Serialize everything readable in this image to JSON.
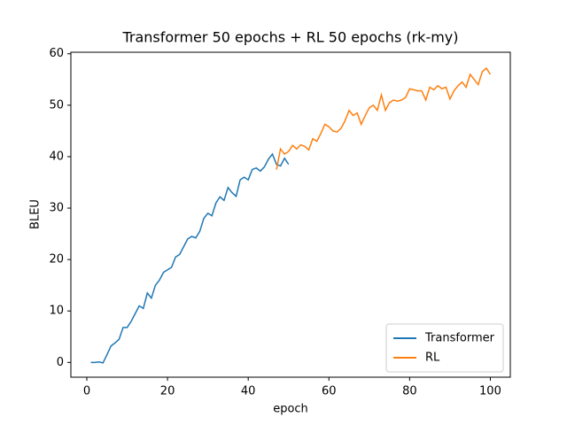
{
  "chart_data": {
    "type": "line",
    "title": "Transformer 50 epochs + RL 50 epochs (rk-my)",
    "x_label": "epoch",
    "y_label": "BLEU",
    "xlim": [
      -3.95,
      104.95
    ],
    "ylim": [
      -2.87,
      60.3
    ],
    "xticks": [
      0,
      20,
      40,
      60,
      80,
      100
    ],
    "yticks": [
      0,
      10,
      20,
      30,
      40,
      50,
      60
    ],
    "legend": "lower right",
    "series": [
      {
        "name": "Transformer",
        "color": "#1f77b4",
        "x": [
          1,
          2,
          3,
          4,
          5,
          6,
          7,
          8,
          9,
          10,
          11,
          12,
          13,
          14,
          15,
          16,
          17,
          18,
          19,
          20,
          21,
          22,
          23,
          24,
          25,
          26,
          27,
          28,
          29,
          30,
          31,
          32,
          33,
          34,
          35,
          36,
          37,
          38,
          39,
          40,
          41,
          42,
          43,
          44,
          45,
          46,
          47,
          48,
          49,
          50
        ],
        "values": [
          0,
          0,
          0.1,
          -0.1,
          1.5,
          3.2,
          3.8,
          4.5,
          6.8,
          6.8,
          8,
          9.5,
          11,
          10.5,
          13.5,
          12.5,
          15,
          16,
          17.5,
          18,
          18.5,
          20.5,
          21,
          22.5,
          24,
          24.5,
          24.2,
          25.5,
          28,
          29,
          28.5,
          31,
          32.2,
          31.5,
          34,
          33,
          32.3,
          35.5,
          36,
          35.5,
          37.5,
          37.8,
          37.2,
          38,
          39.5,
          40.5,
          38.5,
          38.2,
          39.7,
          38.5
        ]
      },
      {
        "name": "RL",
        "color": "#ff7f0e",
        "x": [
          47,
          48,
          49,
          50,
          51,
          52,
          53,
          54,
          55,
          56,
          57,
          58,
          59,
          60,
          61,
          62,
          63,
          64,
          65,
          66,
          67,
          68,
          69,
          70,
          71,
          72,
          73,
          74,
          75,
          76,
          77,
          78,
          79,
          80,
          81,
          82,
          83,
          84,
          85,
          86,
          87,
          88,
          89,
          90,
          91,
          92,
          93,
          94,
          95,
          96,
          97,
          98,
          99,
          100
        ],
        "values": [
          37.5,
          41.5,
          40.5,
          41,
          42.2,
          41.5,
          42.3,
          42,
          41.3,
          43.5,
          43,
          44.5,
          46.3,
          45.8,
          45,
          44.8,
          45.5,
          47,
          49,
          48,
          48.5,
          46.3,
          48,
          49.5,
          50,
          49,
          52,
          49,
          50.5,
          51,
          50.8,
          51,
          51.5,
          53.2,
          53,
          52.8,
          52.8,
          51,
          53.5,
          53,
          53.8,
          53.2,
          53.5,
          51.2,
          52.8,
          53.8,
          54.5,
          53.5,
          56,
          55,
          54,
          56.5,
          57.2,
          56
        ]
      }
    ]
  }
}
